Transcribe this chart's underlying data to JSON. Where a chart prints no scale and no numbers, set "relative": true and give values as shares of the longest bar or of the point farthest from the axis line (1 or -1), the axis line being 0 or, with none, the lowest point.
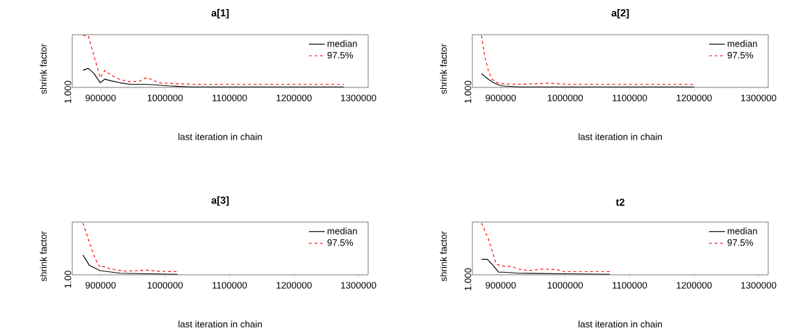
{
  "chart_data": [
    {
      "type": "line",
      "title": "a[1]",
      "xlabel": "last iteration in chain",
      "ylabel": "shrink factor",
      "relative": true,
      "legend": "top right",
      "annotations": [
        "1.000"
      ],
      "xlim": [
        856000,
        1315000
      ],
      "xticks": [
        900000,
        1000000,
        1100000,
        1200000,
        1300000
      ],
      "series": [
        {
          "name": "median",
          "color": "#000000",
          "line_style": "solid",
          "x": [
            872700,
            880800,
            889800,
            899300,
            906600,
            915900,
            930600,
            945400,
            967000,
            985000,
            1004400,
            1041300,
            1115100,
            1188900,
            1277500
          ],
          "values": [
            0.33,
            0.37,
            0.27,
            0.09,
            0.16,
            0.13,
            0.09,
            0.06,
            0.06,
            0.05,
            0.03,
            0.01,
            0.01,
            0.01,
            0.01
          ]
        },
        {
          "name": "97.5%",
          "color": "#ff0000",
          "line_style": "dashed",
          "x": [
            872700,
            880800,
            899300,
            906600,
            915900,
            930600,
            945400,
            960100,
            971200,
            982300,
            989700,
            1004400,
            1041300,
            1115100,
            1188900,
            1277500
          ],
          "values": [
            1.0,
            1.0,
            0.19,
            0.33,
            0.24,
            0.15,
            0.11,
            0.12,
            0.19,
            0.14,
            0.09,
            0.08,
            0.06,
            0.06,
            0.06,
            0.06
          ]
        }
      ]
    },
    {
      "type": "line",
      "title": "a[2]",
      "xlabel": "last iteration in chain",
      "ylabel": "shrink factor",
      "relative": true,
      "legend": "top right",
      "annotations": [
        "1.000"
      ],
      "xlim": [
        856000,
        1315000
      ],
      "xticks": [
        900000,
        1000000,
        1100000,
        1200000,
        1300000
      ],
      "series": [
        {
          "name": "median",
          "color": "#000000",
          "line_style": "solid",
          "x": [
            870200,
            879200,
            889000,
            900800,
            928200,
            1006700,
            1085100,
            1163500,
            1200000
          ],
          "values": [
            0.27,
            0.17,
            0.09,
            0.03,
            0.01,
            0.01,
            0.01,
            0.01,
            0.01
          ]
        },
        {
          "name": "97.5%",
          "color": "#ff0000",
          "line_style": "dashed",
          "x": [
            870200,
            875300,
            881200,
            887100,
            892900,
            900800,
            928200,
            975300,
            1006700,
            1085100,
            1163500,
            1200000
          ],
          "values": [
            1.0,
            0.6,
            0.31,
            0.15,
            0.1,
            0.07,
            0.06,
            0.08,
            0.06,
            0.06,
            0.06,
            0.06
          ]
        }
      ]
    },
    {
      "type": "line",
      "title": "a[3]",
      "xlabel": "last iteration in chain",
      "ylabel": "shrink factor",
      "relative": true,
      "legend": "top right",
      "annotations": [
        "1.00"
      ],
      "xlim": [
        856000,
        1315000
      ],
      "xticks": [
        900000,
        1000000,
        1100000,
        1200000,
        1300000
      ],
      "series": [
        {
          "name": "median",
          "color": "#000000",
          "line_style": "solid",
          "x": [
            872700,
            882700,
            899300,
            930600,
            974900,
            1019200
          ],
          "values": [
            0.38,
            0.18,
            0.08,
            0.03,
            0.02,
            0.01
          ]
        },
        {
          "name": "97.5%",
          "color": "#ff0000",
          "line_style": "dashed",
          "x": [
            872700,
            882700,
            891900,
            899300,
            904800,
            915900,
            938000,
            974900,
            986000,
            1019200
          ],
          "values": [
            1.0,
            0.62,
            0.3,
            0.14,
            0.16,
            0.11,
            0.07,
            0.09,
            0.07,
            0.06
          ]
        }
      ]
    },
    {
      "type": "line",
      "title": "t2",
      "xlabel": "last iteration in chain",
      "ylabel": "shrink factor",
      "relative": true,
      "legend": "top right",
      "annotations": [
        "1.000"
      ],
      "xlim": [
        856000,
        1315000
      ],
      "xticks": [
        900000,
        1000000,
        1100000,
        1200000,
        1300000
      ],
      "series": [
        {
          "name": "median",
          "color": "#000000",
          "line_style": "solid",
          "x": [
            870200,
            879200,
            889000,
            896900,
            904700,
            928200,
            998800,
            1069400
          ],
          "values": [
            0.3,
            0.3,
            0.17,
            0.05,
            0.05,
            0.03,
            0.02,
            0.01
          ]
        },
        {
          "name": "97.5%",
          "color": "#ff0000",
          "line_style": "dashed",
          "x": [
            870200,
            881200,
            892900,
            900800,
            916500,
            928200,
            943900,
            963500,
            987100,
            998800,
            1069400
          ],
          "values": [
            1.0,
            0.68,
            0.21,
            0.17,
            0.16,
            0.11,
            0.08,
            0.11,
            0.1,
            0.06,
            0.06
          ]
        }
      ]
    }
  ]
}
